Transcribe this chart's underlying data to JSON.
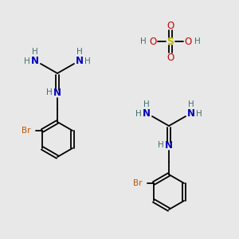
{
  "bg_color": "#e8e8e8",
  "atom_colors": {
    "N": "#0000bb",
    "H": "#407070",
    "Br": "#bb5500",
    "S": "#bbbb00",
    "O": "#cc0000",
    "C": "#000000",
    "bond": "#000000"
  }
}
